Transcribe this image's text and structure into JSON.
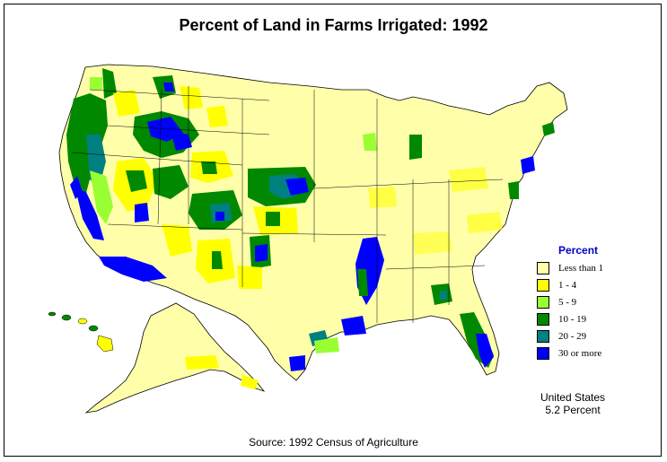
{
  "title": "Percent of Land in Farms Irrigated:  1992",
  "legend": {
    "title": "Percent",
    "items": [
      {
        "label": "Less than 1",
        "color": "#ffffaa"
      },
      {
        "label": "1  -  4",
        "color": "#ffff00"
      },
      {
        "label": "5  -  9",
        "color": "#99ff33"
      },
      {
        "label": "10  -  19",
        "color": "#008800"
      },
      {
        "label": "20  -  29",
        "color": "#008080"
      },
      {
        "label": "30 or more",
        "color": "#0000ff"
      }
    ]
  },
  "summary": {
    "line1": "United States",
    "line2": "5.2 Percent"
  },
  "source": "Source:  1992 Census of Agriculture",
  "colors": {
    "less_than_1": "#ffffaa",
    "one_to_4": "#ffff00",
    "five_to_9": "#99ff33",
    "ten_to_19": "#008800",
    "twenty_to_29": "#008080",
    "thirty_plus": "#0000ff",
    "legend_title": "#0000cc",
    "border": "#000000"
  }
}
